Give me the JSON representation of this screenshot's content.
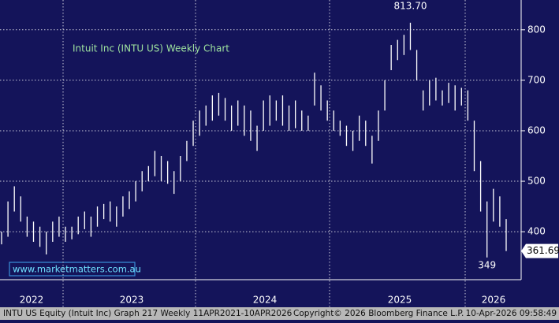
{
  "chart_data": {
    "type": "hilo",
    "title": "Intuit Inc (INTU US) Weekly Chart",
    "source": "www.marketmatters.com.au",
    "color": "#ffffff",
    "background": "#14145a",
    "grid": true,
    "ylim": [
      305,
      859
    ],
    "yticks": [
      400,
      500,
      600,
      700,
      800
    ],
    "x_labels": [
      "2022",
      "2023",
      "2024",
      "2025",
      "2026"
    ],
    "high_label": "813.70",
    "low_label": "349",
    "last_price": 361.69,
    "high": [
      400,
      460,
      490,
      470,
      430,
      420,
      410,
      400,
      420,
      430,
      410,
      410,
      430,
      440,
      430,
      450,
      455,
      460,
      450,
      470,
      480,
      500,
      520,
      530,
      560,
      550,
      540,
      520,
      550,
      580,
      620,
      640,
      650,
      670,
      675,
      665,
      650,
      660,
      650,
      640,
      610,
      660,
      670,
      660,
      670,
      650,
      660,
      640,
      630,
      715,
      690,
      660,
      640,
      620,
      610,
      600,
      630,
      620,
      590,
      640,
      700,
      770,
      780,
      790,
      814,
      760,
      680,
      700,
      705,
      680,
      695,
      690,
      685,
      680,
      620,
      540,
      460,
      485,
      470,
      425
    ],
    "low": [
      375,
      390,
      440,
      420,
      390,
      380,
      370,
      355,
      380,
      390,
      380,
      385,
      395,
      405,
      390,
      410,
      425,
      420,
      410,
      430,
      445,
      460,
      480,
      500,
      510,
      500,
      495,
      475,
      500,
      540,
      570,
      590,
      610,
      620,
      630,
      620,
      600,
      610,
      590,
      580,
      560,
      600,
      610,
      620,
      610,
      600,
      605,
      600,
      600,
      650,
      640,
      620,
      600,
      590,
      570,
      560,
      580,
      570,
      535,
      580,
      640,
      720,
      740,
      750,
      760,
      700,
      640,
      650,
      660,
      650,
      655,
      640,
      650,
      620,
      520,
      440,
      349,
      420,
      410,
      361.69
    ],
    "footer_left": "INTU US Equity (Intuit Inc) Graph 217 Weekly 11APR2021-10APR2026",
    "footer_mid": "Copyright© 2026 Bloomberg Finance L.P.",
    "footer_right": "10-Apr-2026 09:58:49"
  }
}
